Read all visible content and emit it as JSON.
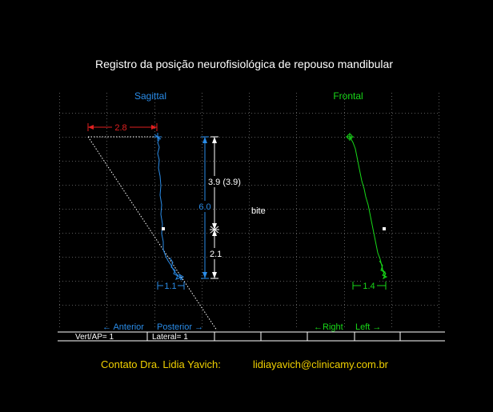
{
  "title": "Registro da posição neurofisiológica de repouso mandibular",
  "sagittal": {
    "label": "Sagittal",
    "color": "#2a8ce8",
    "measure_top": "2.8",
    "measure_bottom": "1.1",
    "measure_total": "6.0",
    "measure_upper": "3.9 (3.9)",
    "measure_lower": "2.1",
    "dir_left": "← Anterior",
    "dir_right": "Posterior →"
  },
  "frontal": {
    "label": "Frontal",
    "color": "#18d818",
    "measure_bottom": "1.4",
    "dir_left": "←Right",
    "dir_right": "Left →"
  },
  "bite_label": "bite",
  "status": {
    "vert_ap": "Vert/AP= 1",
    "lateral": "Lateral= 1"
  },
  "contact": {
    "label": "Contato  Dra. Lidia Yavich:",
    "email": "lidiayavich@clinicamy.com.br",
    "color": "#f0d000"
  }
}
